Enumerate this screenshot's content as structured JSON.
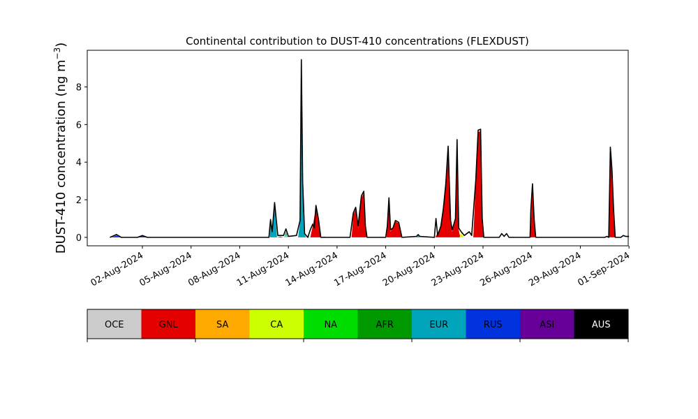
{
  "chart_data": {
    "type": "area",
    "title": "Continental contribution to DUST-410 concentrations (FLEXDUST)",
    "ylabel": "DUST-410 concentration (ng m⁻³)",
    "ylabel_main": "DUST-410 concentration (ng m",
    "ylabel_sup": "−3",
    "ylabel_close": ")",
    "xlabel": "",
    "ylim": [
      -0.45,
      9.95
    ],
    "yticks": [
      0,
      2,
      4,
      6,
      8
    ],
    "ytick_labels": [
      "0",
      "2",
      "4",
      "6",
      "8"
    ],
    "xlim": [
      -2.4,
      30.95
    ],
    "xticks": [
      1,
      4,
      7,
      10,
      13,
      16,
      19,
      22,
      25,
      28,
      31
    ],
    "xtick_labels": [
      "02-Aug-2024",
      "05-Aug-2024",
      "08-Aug-2024",
      "11-Aug-2024",
      "14-Aug-2024",
      "17-Aug-2024",
      "20-Aug-2024",
      "23-Aug-2024",
      "26-Aug-2024",
      "29-Aug-2024",
      "01-Sep-2024"
    ],
    "x_note": "x values are days after 01-Aug-2024",
    "series_colors": {
      "OCE": "#cccccc",
      "GNL": "#e50000",
      "SA": "#ffaa00",
      "CA": "#ccff00",
      "NA": "#00dd00",
      "AFR": "#009900",
      "EUR": "#00a4bb",
      "RUS": "#0033dd",
      "ASI": "#660099",
      "AUS": "#000000"
    },
    "outline_color": "#000000",
    "total_key_points": [
      [
        -1.0,
        0.0
      ],
      [
        -0.6,
        0.15
      ],
      [
        -0.3,
        0.0
      ],
      [
        0.7,
        0.0
      ],
      [
        1.0,
        0.1
      ],
      [
        1.3,
        0.0
      ],
      [
        7.5,
        0.0
      ],
      [
        8.8,
        0.0
      ],
      [
        8.9,
        0.95
      ],
      [
        9.0,
        0.3
      ],
      [
        9.15,
        1.85
      ],
      [
        9.35,
        0.1
      ],
      [
        9.7,
        0.1
      ],
      [
        9.85,
        0.45
      ],
      [
        10.0,
        0.05
      ],
      [
        10.5,
        0.1
      ],
      [
        10.72,
        0.9
      ],
      [
        10.8,
        9.45
      ],
      [
        10.88,
        3.0
      ],
      [
        11.0,
        0.2
      ],
      [
        11.2,
        0.0
      ],
      [
        11.35,
        0.4
      ],
      [
        11.5,
        0.7
      ],
      [
        11.6,
        0.5
      ],
      [
        11.7,
        1.7
      ],
      [
        11.85,
        1.0
      ],
      [
        12.0,
        0.0
      ],
      [
        13.8,
        0.0
      ],
      [
        14.0,
        1.3
      ],
      [
        14.15,
        1.6
      ],
      [
        14.3,
        0.6
      ],
      [
        14.5,
        2.2
      ],
      [
        14.65,
        2.45
      ],
      [
        14.75,
        0.6
      ],
      [
        14.85,
        0.0
      ],
      [
        16.0,
        0.0
      ],
      [
        16.1,
        0.6
      ],
      [
        16.2,
        2.1
      ],
      [
        16.3,
        0.4
      ],
      [
        16.45,
        0.5
      ],
      [
        16.6,
        0.9
      ],
      [
        16.8,
        0.8
      ],
      [
        17.0,
        0.0
      ],
      [
        17.9,
        0.05
      ],
      [
        18.0,
        0.15
      ],
      [
        18.1,
        0.05
      ],
      [
        19.0,
        0.0
      ],
      [
        19.1,
        1.0
      ],
      [
        19.2,
        0.1
      ],
      [
        19.4,
        0.6
      ],
      [
        19.55,
        1.5
      ],
      [
        19.7,
        2.8
      ],
      [
        19.85,
        4.85
      ],
      [
        20.0,
        0.9
      ],
      [
        20.1,
        0.4
      ],
      [
        20.3,
        1.0
      ],
      [
        20.4,
        5.2
      ],
      [
        20.5,
        0.5
      ],
      [
        20.65,
        0.3
      ],
      [
        20.85,
        0.1
      ],
      [
        21.15,
        0.3
      ],
      [
        21.3,
        0.1
      ],
      [
        21.55,
        3.0
      ],
      [
        21.7,
        5.7
      ],
      [
        21.85,
        5.75
      ],
      [
        21.95,
        1.0
      ],
      [
        22.05,
        0.0
      ],
      [
        23.0,
        0.0
      ],
      [
        23.15,
        0.2
      ],
      [
        23.3,
        0.05
      ],
      [
        23.45,
        0.2
      ],
      [
        23.6,
        0.0
      ],
      [
        24.9,
        0.0
      ],
      [
        24.95,
        1.5
      ],
      [
        25.05,
        2.85
      ],
      [
        25.15,
        1.0
      ],
      [
        25.25,
        0.0
      ],
      [
        29.5,
        0.0
      ],
      [
        29.65,
        0.05
      ],
      [
        29.75,
        0.0
      ],
      [
        29.85,
        4.8
      ],
      [
        29.95,
        3.6
      ],
      [
        30.05,
        1.5
      ],
      [
        30.15,
        0.0
      ],
      [
        30.5,
        0.0
      ],
      [
        30.65,
        0.1
      ],
      [
        30.8,
        0.05
      ],
      [
        31.0,
        0.05
      ]
    ],
    "component_areas": [
      {
        "name": "GNL",
        "points": [
          [
            11.35,
            0.0
          ],
          [
            11.5,
            0.6
          ],
          [
            11.7,
            1.6
          ],
          [
            11.85,
            0.9
          ],
          [
            12.0,
            0.0
          ]
        ]
      },
      {
        "name": "GNL",
        "points": [
          [
            13.9,
            0.0
          ],
          [
            14.0,
            1.2
          ],
          [
            14.15,
            1.5
          ],
          [
            14.3,
            0.5
          ],
          [
            14.5,
            2.1
          ],
          [
            14.65,
            2.35
          ],
          [
            14.75,
            0.5
          ],
          [
            14.85,
            0.0
          ]
        ]
      },
      {
        "name": "GNL",
        "points": [
          [
            16.05,
            0.0
          ],
          [
            16.2,
            2.0
          ],
          [
            16.3,
            0.3
          ],
          [
            16.6,
            0.85
          ],
          [
            16.8,
            0.75
          ],
          [
            17.0,
            0.0
          ]
        ]
      },
      {
        "name": "GNL",
        "points": [
          [
            19.05,
            0.0
          ],
          [
            19.4,
            0.55
          ],
          [
            19.55,
            1.45
          ],
          [
            19.7,
            2.7
          ],
          [
            19.85,
            4.75
          ],
          [
            20.0,
            0.8
          ],
          [
            20.1,
            0.3
          ],
          [
            20.3,
            0.9
          ],
          [
            20.4,
            5.1
          ],
          [
            20.5,
            0.4
          ],
          [
            20.6,
            0.0
          ]
        ]
      },
      {
        "name": "GNL",
        "points": [
          [
            21.4,
            0.0
          ],
          [
            21.55,
            2.9
          ],
          [
            21.7,
            5.6
          ],
          [
            21.85,
            5.65
          ],
          [
            21.95,
            0.9
          ],
          [
            22.05,
            0.0
          ]
        ]
      },
      {
        "name": "GNL",
        "points": [
          [
            24.92,
            0.0
          ],
          [
            25.05,
            2.75
          ],
          [
            25.15,
            0.9
          ],
          [
            25.25,
            0.0
          ]
        ]
      },
      {
        "name": "GNL",
        "points": [
          [
            29.78,
            0.0
          ],
          [
            29.85,
            4.7
          ],
          [
            29.95,
            3.5
          ],
          [
            30.05,
            1.4
          ],
          [
            30.15,
            0.0
          ]
        ]
      },
      {
        "name": "EUR",
        "points": [
          [
            8.85,
            0.0
          ],
          [
            8.9,
            0.9
          ],
          [
            9.0,
            0.25
          ],
          [
            9.15,
            1.8
          ],
          [
            9.3,
            0.0
          ]
        ]
      },
      {
        "name": "EUR",
        "points": [
          [
            10.6,
            0.0
          ],
          [
            10.72,
            0.85
          ],
          [
            10.8,
            9.4
          ],
          [
            10.88,
            2.9
          ],
          [
            11.0,
            0.15
          ],
          [
            11.1,
            0.0
          ]
        ]
      },
      {
        "name": "EUR",
        "points": [
          [
            9.75,
            0.0
          ],
          [
            9.85,
            0.3
          ],
          [
            9.95,
            0.0
          ]
        ]
      },
      {
        "name": "EUR",
        "points": [
          [
            17.9,
            0.0
          ],
          [
            18.0,
            0.1
          ],
          [
            18.1,
            0.0
          ]
        ]
      },
      {
        "name": "CA",
        "points": [
          [
            9.78,
            0.0
          ],
          [
            9.85,
            0.15
          ],
          [
            9.92,
            0.0
          ]
        ]
      },
      {
        "name": "CA",
        "points": [
          [
            20.55,
            0.0
          ],
          [
            20.65,
            0.25
          ],
          [
            20.8,
            0.0
          ]
        ]
      },
      {
        "name": "NA",
        "points": [
          [
            11.1,
            0.0
          ],
          [
            11.2,
            0.05
          ],
          [
            11.3,
            0.0
          ]
        ]
      },
      {
        "name": "NA",
        "points": [
          [
            12.0,
            0.0
          ],
          [
            12.2,
            0.04
          ],
          [
            12.4,
            0.0
          ]
        ]
      },
      {
        "name": "RUS",
        "points": [
          [
            -0.9,
            0.0
          ],
          [
            -0.6,
            0.1
          ],
          [
            -0.35,
            0.0
          ]
        ]
      },
      {
        "name": "ASI",
        "points": [
          [
            0.7,
            0.0
          ],
          [
            1.0,
            0.07
          ],
          [
            1.3,
            0.0
          ]
        ]
      },
      {
        "name": "RUS",
        "points": [
          [
            9.3,
            0.0
          ],
          [
            9.5,
            0.04
          ],
          [
            9.7,
            0.0
          ]
        ]
      }
    ],
    "legend": {
      "placement": "bottom",
      "items": [
        {
          "label": "OCE",
          "color": "#cccccc",
          "text_color": "#000000"
        },
        {
          "label": "GNL",
          "color": "#e50000",
          "text_color": "#000000"
        },
        {
          "label": "SA",
          "color": "#ffaa00",
          "text_color": "#000000"
        },
        {
          "label": "CA",
          "color": "#ccff00",
          "text_color": "#000000"
        },
        {
          "label": "NA",
          "color": "#00dd00",
          "text_color": "#000000"
        },
        {
          "label": "AFR",
          "color": "#009900",
          "text_color": "#000000"
        },
        {
          "label": "EUR",
          "color": "#00a4bb",
          "text_color": "#000000"
        },
        {
          "label": "RUS",
          "color": "#0033dd",
          "text_color": "#000000"
        },
        {
          "label": "ASI",
          "color": "#660099",
          "text_color": "#000000"
        },
        {
          "label": "AUS",
          "color": "#000000",
          "text_color": "#ffffff"
        }
      ]
    },
    "grid": false
  }
}
